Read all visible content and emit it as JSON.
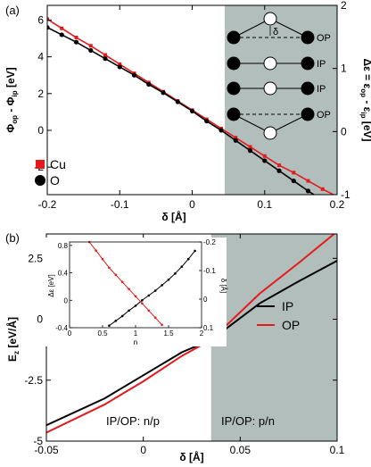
{
  "chart_data": [
    {
      "panel_label": "(a)",
      "type": "line",
      "xlabel": "δ [Å]",
      "ylabel_left": "Φ_op - Φ_ip [eV]",
      "ylabel_right": "Δε = ε_op - ε_ip [eV]",
      "xlim": [
        -0.2,
        0.2
      ],
      "ylim": [
        -3.5,
        6.8
      ],
      "ylim_right": [
        -1,
        2
      ],
      "xticks": [
        "-0.2",
        "-0.1",
        "0",
        "0.1",
        "0.2"
      ],
      "yticks_left": [
        "-2",
        "0",
        "2",
        "4",
        "6"
      ],
      "yticks_right": [
        "-1",
        "0",
        "1",
        "2"
      ],
      "shaded_from_x": 0.045,
      "legend": {
        "placement": "bottom-left"
      },
      "series": [
        {
          "name": "Cu",
          "color": "#e41a1c",
          "marker": "square",
          "x": [
            -0.2,
            -0.18,
            -0.16,
            -0.14,
            -0.12,
            -0.1,
            -0.08,
            -0.06,
            -0.04,
            -0.02,
            0,
            0.02,
            0.04,
            0.06,
            0.08,
            0.1,
            0.12,
            0.14,
            0.16,
            0.18,
            0.2
          ],
          "y": [
            6.05,
            5.55,
            5.05,
            4.6,
            4.1,
            3.6,
            3.1,
            2.6,
            2.1,
            1.6,
            1.1,
            0.6,
            0.1,
            -0.4,
            -0.9,
            -1.4,
            -1.9,
            -2.3,
            -2.75,
            -3.2,
            -3.6
          ]
        },
        {
          "name": "O",
          "color": "#000000",
          "marker": "circle",
          "x": [
            -0.2,
            -0.18,
            -0.16,
            -0.14,
            -0.12,
            -0.1,
            -0.08,
            -0.06,
            -0.04,
            -0.02,
            0,
            0.02,
            0.04,
            0.06,
            0.08,
            0.1,
            0.12,
            0.14,
            0.16,
            0.18
          ],
          "y": [
            5.6,
            5.2,
            4.8,
            4.35,
            3.9,
            3.45,
            3.0,
            2.5,
            2.05,
            1.55,
            1.05,
            0.5,
            0.0,
            -0.55,
            -1.1,
            -1.65,
            -2.2,
            -2.75,
            -3.3,
            -3.8
          ]
        }
      ],
      "inset_diagram": {
        "labels": [
          "δ",
          "OP",
          "IP",
          "IP",
          "OP"
        ]
      }
    },
    {
      "panel_label": "(b)",
      "type": "line",
      "xlabel": "δ [Å]",
      "ylabel": "E_z [eV/Å]",
      "xlim": [
        -0.05,
        0.1
      ],
      "ylim": [
        -5,
        3.5
      ],
      "xticks": [
        "-0.05",
        "0",
        "0.05",
        "0.1"
      ],
      "yticks": [
        "-5",
        "-2.5",
        "0",
        "2.5"
      ],
      "shaded_from_x": 0.035,
      "legend": {
        "placement": "right"
      },
      "region_labels": [
        "IP/OP: n/p",
        "IP/OP: p/n"
      ],
      "series": [
        {
          "name": "IP",
          "color": "#000000",
          "x": [
            -0.05,
            -0.02,
            0,
            0.02,
            0.035,
            0.06,
            0.08,
            0.1
          ],
          "y": [
            -4.35,
            -3.25,
            -2.3,
            -1.35,
            -0.85,
            0.65,
            1.55,
            2.4
          ]
        },
        {
          "name": "OP",
          "color": "#e41a1c",
          "x": [
            -0.05,
            -0.02,
            0,
            0.02,
            0.035,
            0.06,
            0.08,
            0.1
          ],
          "y": [
            -4.65,
            -3.5,
            -2.55,
            -1.5,
            -0.85,
            1.05,
            2.3,
            3.6
          ]
        }
      ],
      "inset": {
        "type": "line",
        "xlabel": "n",
        "ylabel_left": "Δε [eV]",
        "ylabel_right": "δ [Å]",
        "xlim": [
          0,
          2
        ],
        "ylim": [
          -0.4,
          0.85
        ],
        "ylim_right": [
          0.1,
          -0.2
        ],
        "xticks": [
          "0",
          "0.5",
          "1",
          "1.5",
          "2"
        ],
        "yticks_left": [
          "-0.4",
          "0",
          "0.4",
          "0.8"
        ],
        "yticks_right": [
          "0.1",
          "0",
          "-0.1",
          "-0.2"
        ],
        "series": [
          {
            "name": "Δε",
            "color": "#000000",
            "axis": "left",
            "x": [
              0.6,
              0.7,
              0.8,
              0.9,
              1.0,
              1.1,
              1.2,
              1.3,
              1.4,
              1.5,
              1.6,
              1.7,
              1.8,
              1.9
            ],
            "y": [
              -0.37,
              -0.3,
              -0.23,
              -0.15,
              -0.08,
              0.0,
              0.07,
              0.14,
              0.22,
              0.3,
              0.39,
              0.49,
              0.6,
              0.72
            ]
          },
          {
            "name": "δ",
            "color": "#e41a1c",
            "axis": "right",
            "x": [
              0.3,
              0.4,
              0.5,
              0.6,
              0.7,
              0.8,
              0.9,
              1.0,
              1.1,
              1.2,
              1.3,
              1.4
            ],
            "y": [
              -0.2,
              -0.17,
              -0.14,
              -0.11,
              -0.085,
              -0.06,
              -0.035,
              -0.01,
              0.015,
              0.04,
              0.065,
              0.09
            ]
          }
        ]
      }
    }
  ]
}
